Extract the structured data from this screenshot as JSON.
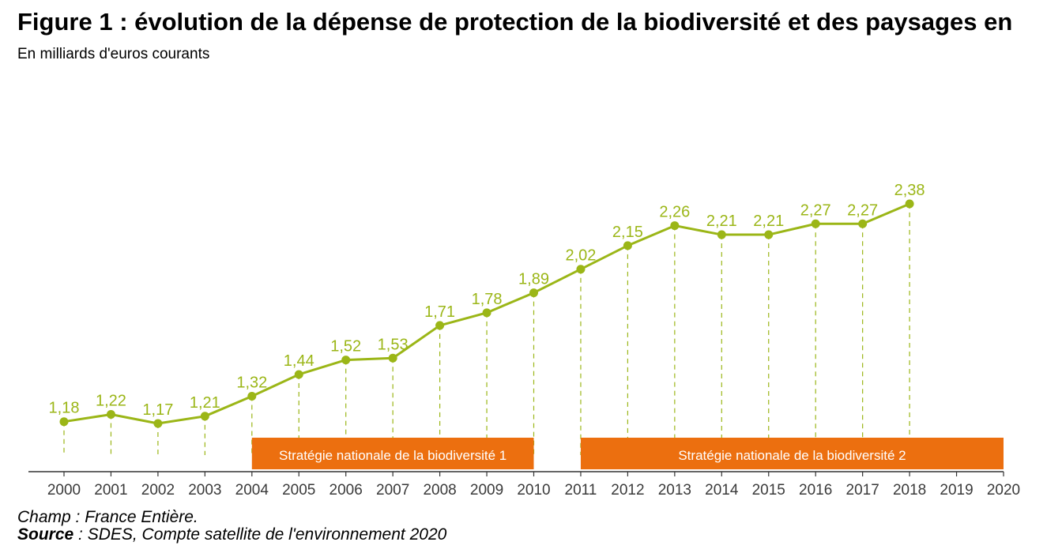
{
  "header": {
    "title": "Figure 1 : évolution de la dépense de protection de la biodiversité et des paysages en",
    "subtitle": "En milliards d'euros courants"
  },
  "footer": {
    "champ": "Champ : France Entière.",
    "source_label": "Source",
    "source_text": " : SDES, Compte satellite de l'environnement 2020"
  },
  "colors": {
    "series": "#9bb617",
    "band": "#ec6f0f",
    "axis": "#333333"
  },
  "chart_data": {
    "type": "line",
    "title": "Figure 1 : évolution de la dépense de protection de la biodiversité et des paysages en",
    "ylabel": "En milliards d'euros courants",
    "x_ticks": [
      "2000",
      "2001",
      "2002",
      "2003",
      "2004",
      "2005",
      "2006",
      "2007",
      "2008",
      "2009",
      "2010",
      "2011",
      "2012",
      "2013",
      "2014",
      "2015",
      "2016",
      "2017",
      "2018",
      "2019",
      "2020"
    ],
    "x": [
      2000,
      2001,
      2002,
      2003,
      2004,
      2005,
      2006,
      2007,
      2008,
      2009,
      2010,
      2011,
      2012,
      2013,
      2014,
      2015,
      2016,
      2017,
      2018
    ],
    "values": [
      1.18,
      1.22,
      1.17,
      1.21,
      1.32,
      1.44,
      1.52,
      1.53,
      1.71,
      1.78,
      1.89,
      2.02,
      2.15,
      2.26,
      2.21,
      2.21,
      2.27,
      2.27,
      2.38
    ],
    "value_labels": [
      "1,18",
      "1,22",
      "1,17",
      "1,21",
      "1,32",
      "1,44",
      "1,52",
      "1,53",
      "1,71",
      "1,78",
      "1,89",
      "2,02",
      "2,15",
      "2,26",
      "2,21",
      "2,21",
      "2,27",
      "2,27",
      "2,38"
    ],
    "xlim": [
      2000,
      2020
    ],
    "grid": false,
    "bands": [
      {
        "label": "Stratégie nationale de la biodiversité 1",
        "start": 2004,
        "end": 2010
      },
      {
        "label": "Stratégie nationale de la biodiversité 2",
        "start": 2011,
        "end": 2020
      }
    ]
  }
}
